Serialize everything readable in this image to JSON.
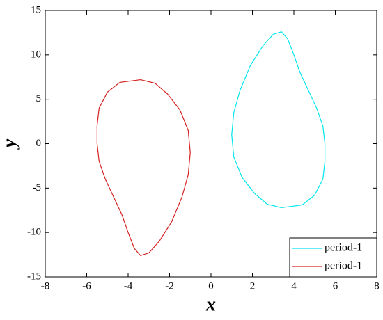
{
  "chart_data": {
    "type": "line",
    "x_label": "x",
    "y_label": "y",
    "xlim": [
      -8,
      8
    ],
    "xticks": [
      -8,
      -6,
      -4,
      -2,
      0,
      2,
      4,
      6,
      8
    ],
    "ylim": [
      -15,
      15
    ],
    "yticks": [
      -15,
      -10,
      -5,
      0,
      5,
      10,
      15
    ],
    "legend": "lower right",
    "series": [
      {
        "name": "period-1",
        "color": "#00e5ee",
        "x": [
          3.4,
          4.4,
          5.0,
          5.4,
          5.5,
          5.5,
          5.4,
          5.1,
          4.7,
          4.3,
          4.0,
          3.7,
          3.4,
          3.0,
          2.5,
          1.9,
          1.4,
          1.1,
          1.0,
          1.1,
          1.5,
          2.1,
          2.7,
          3.4
        ],
        "y": [
          -7.2,
          -6.9,
          -5.8,
          -4,
          -2,
          0,
          2,
          4,
          6,
          8,
          10,
          11.8,
          12.6,
          12.3,
          11,
          8.8,
          6,
          3.5,
          1,
          -1.5,
          -3.8,
          -5.6,
          -6.8,
          -7.2
        ]
      },
      {
        "name": "period-1",
        "color": "#d62020",
        "x": [
          -3.4,
          -4.4,
          -5.0,
          -5.4,
          -5.5,
          -5.5,
          -5.4,
          -5.1,
          -4.7,
          -4.3,
          -4.0,
          -3.7,
          -3.4,
          -3.0,
          -2.5,
          -1.9,
          -1.4,
          -1.1,
          -1.0,
          -1.1,
          -1.5,
          -2.1,
          -2.7,
          -3.4
        ],
        "y": [
          7.2,
          6.9,
          5.8,
          4,
          2,
          0,
          -2,
          -4,
          -6,
          -8,
          -10,
          -11.8,
          -12.6,
          -12.3,
          -11,
          -8.8,
          -6,
          -3.5,
          -1,
          1.5,
          3.8,
          5.6,
          6.8,
          7.2
        ]
      }
    ]
  }
}
